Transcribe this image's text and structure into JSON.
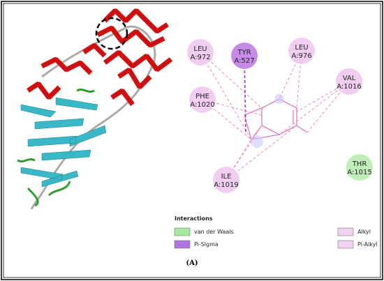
{
  "nodes": [
    {
      "residue": "LEU",
      "chain": "A:972",
      "color": "#f2cdf2"
    },
    {
      "residue": "TYR",
      "chain": "A:527",
      "color": "#c58be6"
    },
    {
      "residue": "LEU",
      "chain": "A:976",
      "color": "#f2cdf2"
    },
    {
      "residue": "VAL",
      "chain": "A:1016",
      "color": "#f2cdf2"
    },
    {
      "residue": "PHE",
      "chain": "A:1020",
      "color": "#f2cdf2"
    },
    {
      "residue": "ILE",
      "chain": "A:1019",
      "color": "#f2cdf2"
    },
    {
      "residue": "THR",
      "chain": "A:1015",
      "color": "#bfeeb8"
    }
  ],
  "legend": {
    "title": "Interactions",
    "items": [
      {
        "label": "van der Waals",
        "color": "#a6e9a0"
      },
      {
        "label": "Pi-Sigma",
        "color": "#b073e0"
      },
      {
        "label": "Alkyl",
        "color": "#f2d2f2"
      },
      {
        "label": "Pi-Alkyl",
        "color": "#f2d2f2"
      }
    ]
  },
  "caption": "(A)"
}
